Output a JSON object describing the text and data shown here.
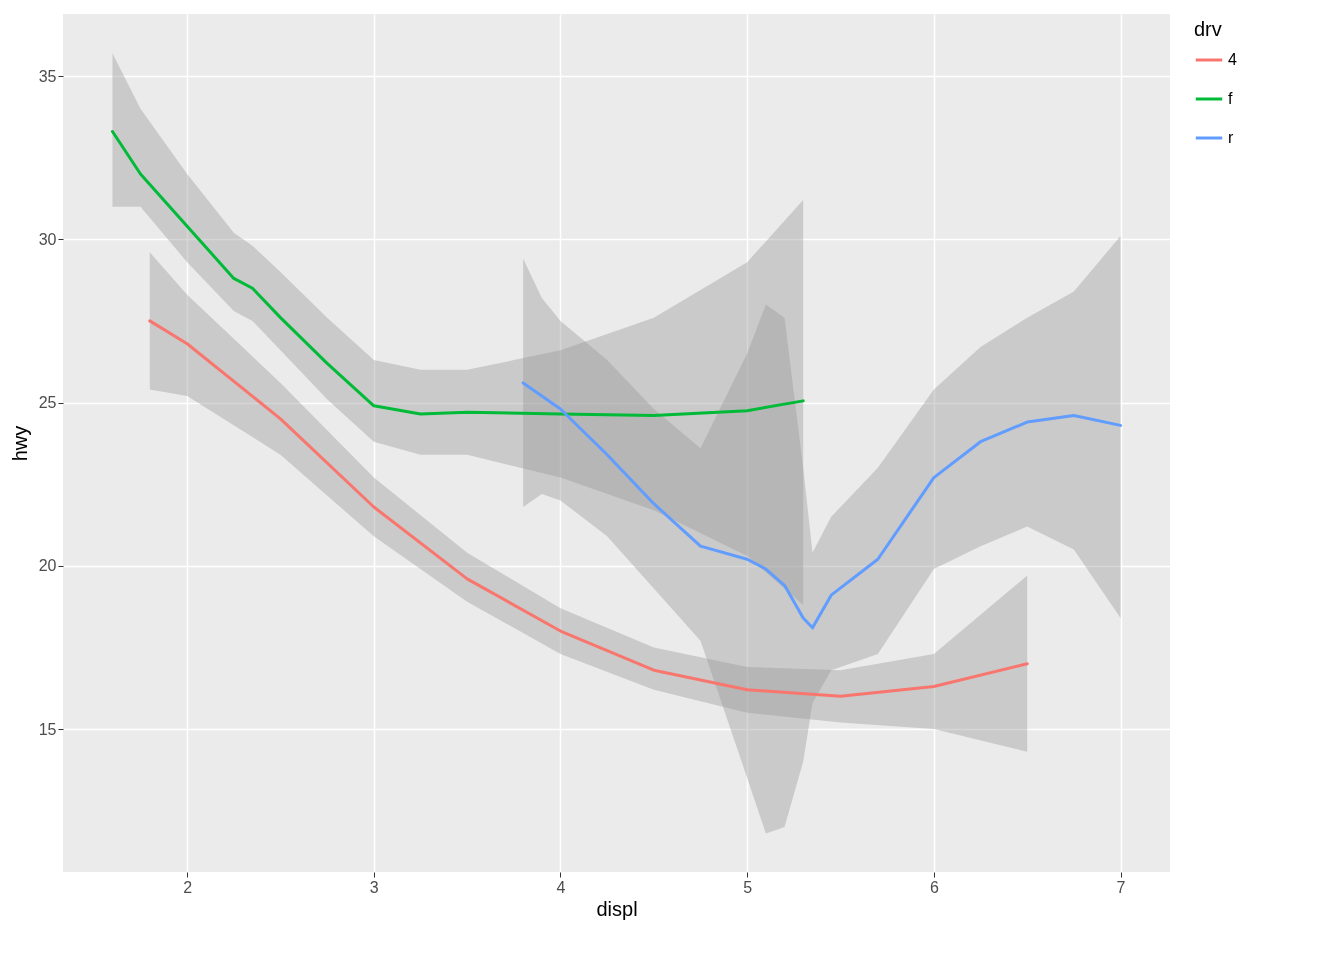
{
  "chart_data": {
    "type": "line",
    "xlabel": "displ",
    "ylabel": "hwy",
    "legend_title": "drv",
    "legend": "right",
    "grid": true,
    "xlim": [
      1.335,
      7.265
    ],
    "ylim": [
      10.62,
      36.9
    ],
    "xticks": [
      2,
      3,
      4,
      5,
      6,
      7
    ],
    "yticks": [
      15,
      20,
      25,
      30,
      35
    ],
    "series": [
      {
        "name": "4",
        "color": "#f8766d",
        "x": [
          1.8,
          2.0,
          2.5,
          3.0,
          3.5,
          4.0,
          4.5,
          5.0,
          5.5,
          6.0,
          6.5
        ],
        "values": [
          27.5,
          26.8,
          24.5,
          21.8,
          19.6,
          18.0,
          16.8,
          16.2,
          16.0,
          16.3,
          17.0
        ],
        "lower": [
          25.4,
          25.2,
          23.4,
          20.9,
          18.9,
          17.3,
          16.2,
          15.5,
          15.2,
          15.0,
          14.3
        ],
        "upper": [
          29.6,
          28.3,
          25.6,
          22.7,
          20.4,
          18.7,
          17.5,
          16.9,
          16.8,
          17.3,
          19.7
        ]
      },
      {
        "name": "f",
        "color": "#00ba38",
        "x": [
          1.6,
          1.75,
          2.0,
          2.25,
          2.35,
          2.5,
          2.75,
          3.0,
          3.25,
          3.5,
          4.0,
          4.5,
          5.0,
          5.3
        ],
        "values": [
          33.3,
          32.0,
          30.4,
          28.8,
          28.5,
          27.6,
          26.2,
          24.9,
          24.65,
          24.7,
          24.65,
          24.6,
          24.75,
          25.05
        ],
        "lower": [
          31.0,
          31.0,
          29.3,
          27.8,
          27.5,
          26.6,
          25.1,
          23.8,
          23.4,
          23.4,
          22.7,
          21.7,
          20.3,
          18.8
        ],
        "upper": [
          35.7,
          34.0,
          32.0,
          30.2,
          29.8,
          29.0,
          27.6,
          26.3,
          26.0,
          26.0,
          26.6,
          27.6,
          29.3,
          31.2
        ]
      },
      {
        "name": "r",
        "color": "#619cff",
        "x": [
          3.8,
          3.9,
          4.0,
          4.25,
          4.5,
          4.75,
          5.0,
          5.1,
          5.2,
          5.3,
          5.35,
          5.45,
          5.7,
          6.0,
          6.25,
          6.5,
          6.75,
          7.0
        ],
        "values": [
          25.6,
          25.2,
          24.8,
          23.4,
          21.9,
          20.6,
          20.2,
          19.9,
          19.4,
          18.4,
          18.1,
          19.1,
          20.2,
          22.7,
          23.8,
          24.4,
          24.6,
          24.3
        ],
        "lower": [
          21.8,
          22.2,
          22.0,
          20.9,
          19.3,
          17.7,
          13.5,
          11.8,
          12.0,
          14.0,
          15.8,
          16.8,
          17.3,
          19.9,
          20.6,
          21.2,
          20.5,
          18.4
        ],
        "upper": [
          29.4,
          28.2,
          27.5,
          26.3,
          24.8,
          23.6,
          26.5,
          28.0,
          27.6,
          23.0,
          20.4,
          21.5,
          23.0,
          25.4,
          26.7,
          27.6,
          28.4,
          30.1
        ]
      }
    ]
  }
}
